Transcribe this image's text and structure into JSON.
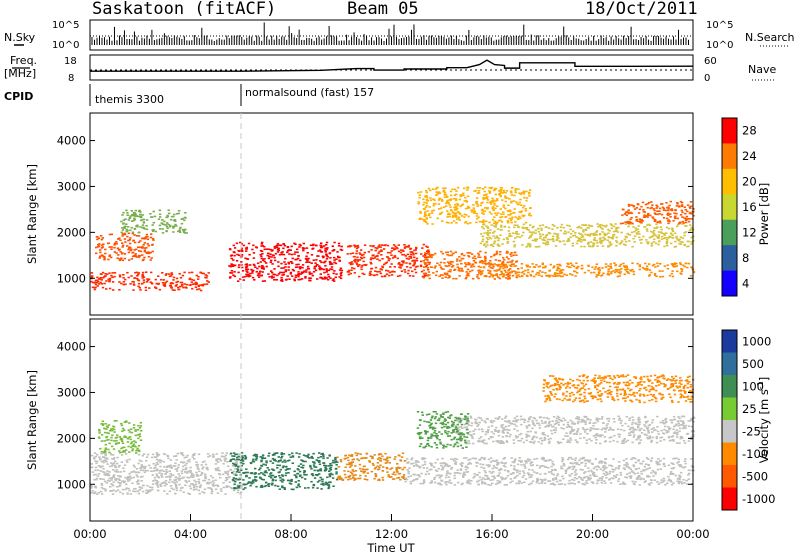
{
  "header": {
    "station": "Saskatoon (fitACF)",
    "beam": "Beam 05",
    "date": "18/Oct/2011"
  },
  "side_labels": {
    "nsky": "N.Sky",
    "nsearch": "N.Search",
    "freq_top": "Freq.",
    "freq_unit": "[MHz]",
    "nave": "Nave",
    "cpid": "CPID"
  },
  "noise_panel": {
    "left_ticks": [
      "10^5",
      "10^0"
    ],
    "right_ticks": [
      "10^5",
      "10^0"
    ]
  },
  "freq_panel": {
    "left_ticks": [
      "18",
      "8"
    ],
    "right_ticks": [
      "60",
      "0"
    ],
    "freq_trace": [
      [
        0,
        12.0
      ],
      [
        6.0,
        12.0
      ],
      [
        9.2,
        12.4
      ],
      [
        10.6,
        13.2
      ],
      [
        11.3,
        13.2
      ],
      [
        11.3,
        12.5
      ],
      [
        12.5,
        12.5
      ],
      [
        12.5,
        13.0
      ],
      [
        14.2,
        13.0
      ],
      [
        14.2,
        13.6
      ],
      [
        15.0,
        13.6
      ],
      [
        15.5,
        15.0
      ],
      [
        15.8,
        17.0
      ],
      [
        16.1,
        15.0
      ],
      [
        16.5,
        14.6
      ],
      [
        16.5,
        13.4
      ],
      [
        17.1,
        13.4
      ],
      [
        17.1,
        15.8
      ],
      [
        19.3,
        15.8
      ],
      [
        19.3,
        14.2
      ],
      [
        21.2,
        14.2
      ],
      [
        24,
        14.3
      ]
    ],
    "dips": [
      [
        11.7,
        12.0
      ],
      [
        12.0,
        11.0
      ],
      [
        16.7,
        12.0
      ]
    ]
  },
  "cpid_panel": {
    "segments": [
      {
        "start": 0,
        "end": 6,
        "label": "themis 3300"
      },
      {
        "start": 6,
        "end": 24,
        "label": "normalsound (fast) 157"
      }
    ]
  },
  "chart_data": [
    {
      "type": "heatmap",
      "name": "power",
      "ylabel": "Slant Range [km]",
      "ylim": [
        200,
        4600
      ],
      "yticks": [
        1000,
        2000,
        3000,
        4000
      ],
      "xlim": [
        0,
        24
      ],
      "colorbar": {
        "label": "Power [dB]",
        "ticks": [
          "28",
          "24",
          "20",
          "16",
          "12",
          "8",
          "4"
        ],
        "colors": [
          "#ff0000",
          "#ff7a00",
          "#ffbf00",
          "#c9d830",
          "#4aa05a",
          "#2c5f9e",
          "#1500ff"
        ]
      },
      "features": [
        {
          "t0": 0.0,
          "t1": 4.7,
          "r0": 750,
          "r1": 1150,
          "color": "#ff2a00"
        },
        {
          "t0": 0.2,
          "t1": 2.5,
          "r0": 1400,
          "r1": 2000,
          "color": "#ff5000"
        },
        {
          "t0": 1.2,
          "t1": 3.8,
          "r0": 2000,
          "r1": 2500,
          "color": "#78ad4c"
        },
        {
          "t0": 5.5,
          "t1": 10.0,
          "r0": 950,
          "r1": 1800,
          "color": "#ff0000"
        },
        {
          "t0": 10.2,
          "t1": 13.5,
          "r0": 1050,
          "r1": 1750,
          "color": "#ff2a00"
        },
        {
          "t0": 13.2,
          "t1": 17.0,
          "r0": 1000,
          "r1": 1600,
          "color": "#ff6a00"
        },
        {
          "t0": 15.5,
          "t1": 24.0,
          "r0": 1050,
          "r1": 1350,
          "color": "#ff8a00"
        },
        {
          "t0": 15.5,
          "t1": 24.0,
          "r0": 1700,
          "r1": 2200,
          "color": "#d6c23a"
        },
        {
          "t0": 21.0,
          "t1": 24.0,
          "r0": 2200,
          "r1": 2700,
          "color": "#ff5a00"
        },
        {
          "t0": 13.0,
          "t1": 17.5,
          "r0": 2200,
          "r1": 3000,
          "color": "#ffb000"
        }
      ]
    },
    {
      "type": "heatmap",
      "name": "velocity",
      "ylabel": "Slant Range [km]",
      "ylim": [
        200,
        4600
      ],
      "yticks": [
        1000,
        2000,
        3000,
        4000
      ],
      "xlim": [
        0,
        24
      ],
      "xticks": [
        "00:00",
        "04:00",
        "08:00",
        "12:00",
        "16:00",
        "20:00",
        "00:00"
      ],
      "xlabel": "Time UT",
      "colorbar": {
        "label": "Velocity [m s",
        "label_sup": "-1",
        "label_end": "]",
        "ticks": [
          "1000",
          "500",
          "100",
          "25",
          "-25",
          "-100",
          "-500",
          "-1000"
        ],
        "colors": [
          "#1a3a9e",
          "#2e6f9b",
          "#3f8e54",
          "#77cc33",
          "#c7c7c7",
          "#ff8a00",
          "#ff5a00",
          "#ff0000"
        ]
      },
      "features": [
        {
          "t0": 0.0,
          "t1": 6.0,
          "r0": 800,
          "r1": 1700,
          "color": "#c0c0bc"
        },
        {
          "t0": 0.3,
          "t1": 2.0,
          "r0": 1700,
          "r1": 2400,
          "color": "#78bd3c"
        },
        {
          "t0": 5.5,
          "t1": 9.8,
          "r0": 900,
          "r1": 1700,
          "color": "#2e7a56"
        },
        {
          "t0": 9.8,
          "t1": 12.5,
          "r0": 1100,
          "r1": 1700,
          "color": "#e58a1a"
        },
        {
          "t0": 12.5,
          "t1": 24.0,
          "r0": 1000,
          "r1": 1600,
          "color": "#c0c0bc"
        },
        {
          "t0": 14.5,
          "t1": 24.0,
          "r0": 1900,
          "r1": 2500,
          "color": "#c0c0bc"
        },
        {
          "t0": 13.0,
          "t1": 15.0,
          "r0": 1800,
          "r1": 2600,
          "color": "#4fa046"
        },
        {
          "t0": 18.0,
          "t1": 24.0,
          "r0": 2800,
          "r1": 3400,
          "color": "#ff8a00"
        }
      ]
    }
  ]
}
